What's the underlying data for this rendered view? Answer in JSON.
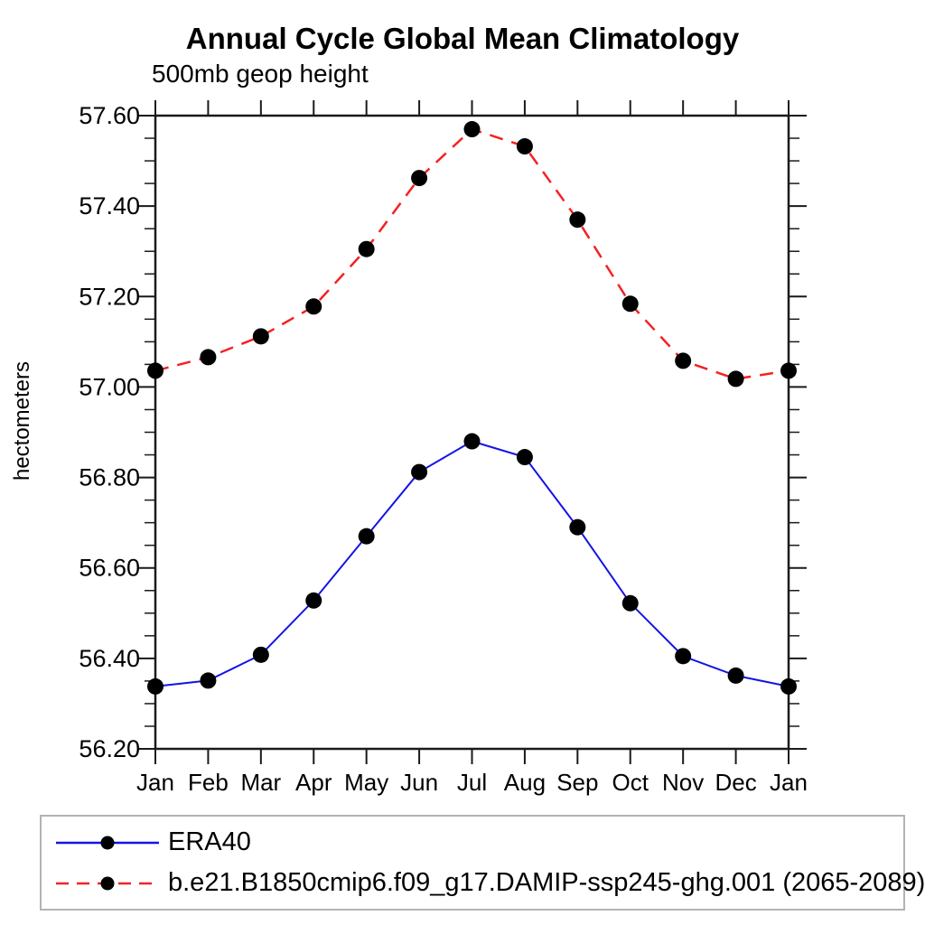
{
  "title": "Annual Cycle Global Mean Climatology",
  "subtitle": "500mb geop height",
  "ylabel": "hectometers",
  "colors": {
    "era40_line": "#1414e6",
    "model_line": "#f52222",
    "marker": "#000000",
    "axis": "#1a1a1a",
    "legend_border": "#b3b3b3"
  },
  "legend": {
    "position": "bottom",
    "entries": [
      {
        "label": "ERA40",
        "color": "#1414e6",
        "dash": "solid",
        "marker": "circle"
      },
      {
        "label": "b.e21.B1850cmip6.f09_g17.DAMIP-ssp245-ghg.001 (2065-2089)",
        "color": "#f52222",
        "dash": "dashed",
        "marker": "circle"
      }
    ]
  },
  "chart_data": {
    "type": "line",
    "title": "Annual Cycle Global Mean Climatology",
    "subtitle": "500mb geop height",
    "xlabel": "",
    "ylabel": "hectometers",
    "categories": [
      "Jan",
      "Feb",
      "Mar",
      "Apr",
      "May",
      "Jun",
      "Jul",
      "Aug",
      "Sep",
      "Oct",
      "Nov",
      "Dec",
      "Jan"
    ],
    "series": [
      {
        "name": "ERA40",
        "color": "#1414e6",
        "style": "solid",
        "marker": "circle",
        "values": [
          56.338,
          56.351,
          56.408,
          56.528,
          56.67,
          56.812,
          56.88,
          56.845,
          56.69,
          56.522,
          56.405,
          56.362,
          56.338
        ]
      },
      {
        "name": "b.e21.B1850cmip6.f09_g17.DAMIP-ssp245-ghg.001 (2065-2089)",
        "color": "#f52222",
        "style": "dashed",
        "marker": "circle",
        "values": [
          57.036,
          57.066,
          57.112,
          57.178,
          57.305,
          57.462,
          57.57,
          57.532,
          57.37,
          57.184,
          57.058,
          57.018,
          57.036
        ]
      }
    ],
    "ylim": [
      56.2,
      57.6
    ],
    "ytick_step": 0.2,
    "ytick_minor_step": 0.05,
    "ytick_labels": [
      "56.20",
      "56.40",
      "56.60",
      "56.80",
      "57.00",
      "57.20",
      "57.40",
      "57.60"
    ],
    "grid": false,
    "legend_position": "bottom"
  }
}
